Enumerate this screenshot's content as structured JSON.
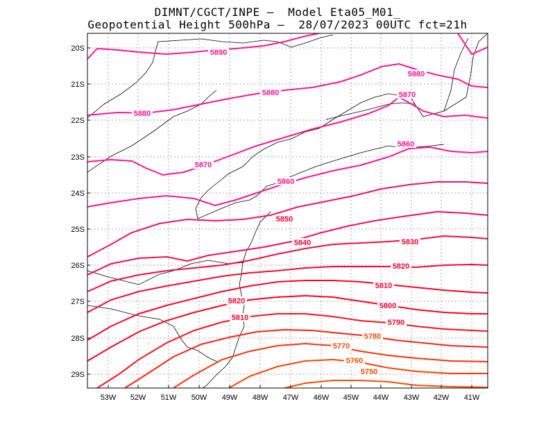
{
  "header": {
    "line1": "DIMNT/CGCT/INPE –  Model Eta05_M01_",
    "line2": "Geopotential Height 500hPa –  28/07/2023 00UTC fct=21h"
  },
  "lat_ticks": [
    "20S",
    "21S",
    "22S",
    "23S",
    "24S",
    "25S",
    "26S",
    "27S",
    "28S",
    "29S"
  ],
  "lon_ticks": [
    "53W",
    "52W",
    "51W",
    "50W",
    "49W",
    "48W",
    "47W",
    "46W",
    "45W",
    "44W",
    "43W",
    "42W",
    "41W"
  ],
  "colors": {
    "high": "#ff1493",
    "mid": "#ff0033",
    "low": "#ff4a00",
    "coast": "#000000",
    "grid": "#aaaaaa"
  },
  "contour_labels": [
    {
      "text": "5890",
      "value": 5890
    },
    {
      "text": "5880",
      "value": 5880
    },
    {
      "text": "5880",
      "value": 5880
    },
    {
      "text": "5880",
      "value": 5880
    },
    {
      "text": "5870",
      "value": 5870
    },
    {
      "text": "5870",
      "value": 5870
    },
    {
      "text": "5860",
      "value": 5860
    },
    {
      "text": "5860",
      "value": 5860
    },
    {
      "text": "5850",
      "value": 5850
    },
    {
      "text": "5840",
      "value": 5840
    },
    {
      "text": "5830",
      "value": 5830
    },
    {
      "text": "5820",
      "value": 5820
    },
    {
      "text": "5820",
      "value": 5820
    },
    {
      "text": "5810",
      "value": 5810
    },
    {
      "text": "5810",
      "value": 5810
    },
    {
      "text": "5800",
      "value": 5800
    },
    {
      "text": "5790",
      "value": 5790
    },
    {
      "text": "5780",
      "value": 5780
    },
    {
      "text": "5770",
      "value": 5770
    },
    {
      "text": "5760",
      "value": 5760
    },
    {
      "text": "5750",
      "value": 5750
    }
  ]
}
